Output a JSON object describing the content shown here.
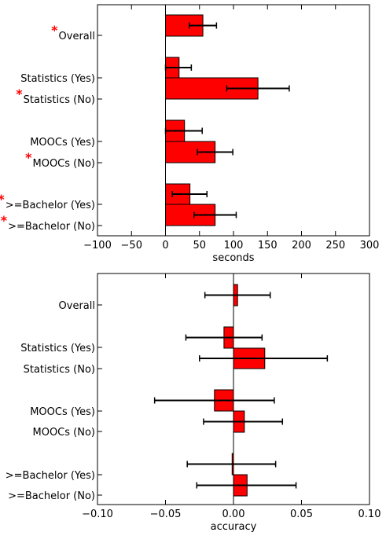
{
  "colors": {
    "bar": "#ff0000",
    "edge": "#000000",
    "star": "#ff0000"
  },
  "chart_data": [
    {
      "type": "bar",
      "orientation": "horizontal",
      "xlabel": "seconds",
      "xlim": [
        -100,
        300
      ],
      "xticks": [
        -100,
        -50,
        0,
        50,
        100,
        150,
        200,
        250,
        300
      ],
      "xtick_labels": [
        "−100",
        "−50",
        "0",
        "50",
        "100",
        "150",
        "200",
        "250",
        "300"
      ],
      "categories": [
        "Overall",
        "Statistics (Yes)",
        "Statistics (No)",
        "MOOCs (Yes)",
        "MOOCs (No)",
        ">=Bachelor (Yes)",
        ">=Bachelor (No)"
      ],
      "values": [
        55,
        20,
        136,
        28,
        73,
        36,
        73
      ],
      "error_low": [
        35,
        0,
        90,
        0,
        47,
        10,
        42
      ],
      "error_high": [
        75,
        38,
        182,
        54,
        99,
        61,
        104
      ],
      "significant": [
        true,
        false,
        true,
        false,
        true,
        true,
        true
      ],
      "grid": false
    },
    {
      "type": "bar",
      "orientation": "horizontal",
      "xlabel": "accuracy",
      "xlim": [
        -0.1,
        0.1
      ],
      "xticks": [
        -0.1,
        -0.05,
        0.0,
        0.05,
        0.1
      ],
      "xtick_labels": [
        "−0.10",
        "−0.05",
        "0.00",
        "0.05",
        "0.10"
      ],
      "categories": [
        "Overall",
        "Statistics (Yes)",
        "Statistics (No)",
        "MOOCs (Yes)",
        "MOOCs (No)",
        ">=Bachelor (Yes)",
        ">=Bachelor (No)"
      ],
      "values": [
        0.003,
        -0.007,
        0.023,
        -0.014,
        0.008,
        -0.001,
        0.01
      ],
      "error_low": [
        -0.021,
        -0.035,
        -0.025,
        -0.058,
        -0.022,
        -0.034,
        -0.027
      ],
      "error_high": [
        0.027,
        0.021,
        0.069,
        0.03,
        0.036,
        0.031,
        0.046
      ],
      "significant": [
        false,
        false,
        false,
        false,
        false,
        false,
        false
      ],
      "grid": false
    }
  ]
}
